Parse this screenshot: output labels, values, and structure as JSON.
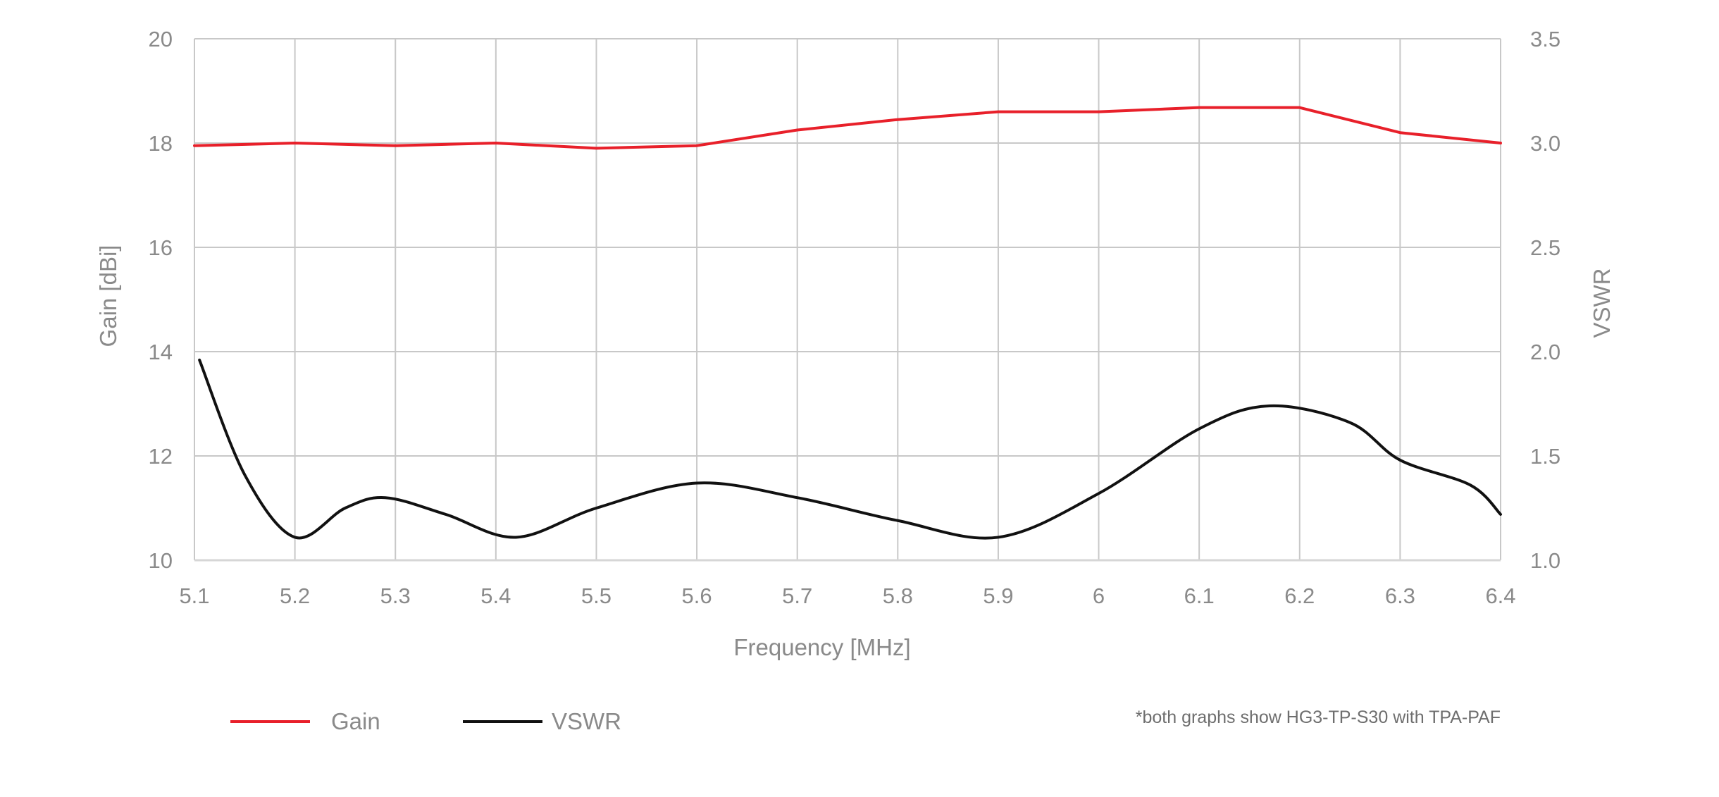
{
  "chart_data": {
    "type": "line",
    "xlabel": "Frequency [MHz]",
    "ylabel_left": "Gain [dBi]",
    "ylabel_right": "VSWR",
    "xlim": [
      5.1,
      6.4
    ],
    "ylim_left": [
      10,
      20
    ],
    "ylim_right": [
      1.0,
      3.5
    ],
    "x_ticks": [
      "5.1",
      "5.2",
      "5.3",
      "5.4",
      "5.5",
      "5.6",
      "5.7",
      "5.8",
      "5.9",
      "6",
      "6.1",
      "6.2",
      "6.3",
      "6.4"
    ],
    "y_ticks_left": [
      "10",
      "12",
      "14",
      "16",
      "18",
      "20"
    ],
    "y_ticks_right": [
      "1.0",
      "1.5",
      "2.0",
      "2.5",
      "3.0",
      "3.5"
    ],
    "grid": true,
    "legend_position": "bottom-left",
    "series": [
      {
        "name": "Gain",
        "axis": "left",
        "color": "#e8202a",
        "x": [
          5.1,
          5.2,
          5.3,
          5.4,
          5.5,
          5.6,
          5.7,
          5.8,
          5.9,
          6.0,
          6.1,
          6.2,
          6.3,
          6.4
        ],
        "y": [
          17.95,
          18.0,
          17.95,
          18.0,
          17.9,
          17.95,
          18.25,
          18.45,
          18.6,
          18.6,
          18.68,
          18.68,
          18.2,
          18.0
        ]
      },
      {
        "name": "VSWR",
        "axis": "right",
        "color": "#111111",
        "x": [
          5.105,
          5.15,
          5.2,
          5.25,
          5.29,
          5.35,
          5.42,
          5.5,
          5.6,
          5.7,
          5.8,
          5.9,
          6.0,
          6.1,
          6.17,
          6.25,
          6.3,
          6.37,
          6.4
        ],
        "y": [
          1.96,
          1.41,
          1.11,
          1.25,
          1.3,
          1.22,
          1.11,
          1.25,
          1.37,
          1.3,
          1.19,
          1.11,
          1.32,
          1.63,
          1.74,
          1.66,
          1.48,
          1.36,
          1.22
        ]
      }
    ],
    "legend": [
      "Gain",
      "VSWR"
    ],
    "footnote": "*both graphs show HG3-TP-S30 with TPA-PAF"
  }
}
